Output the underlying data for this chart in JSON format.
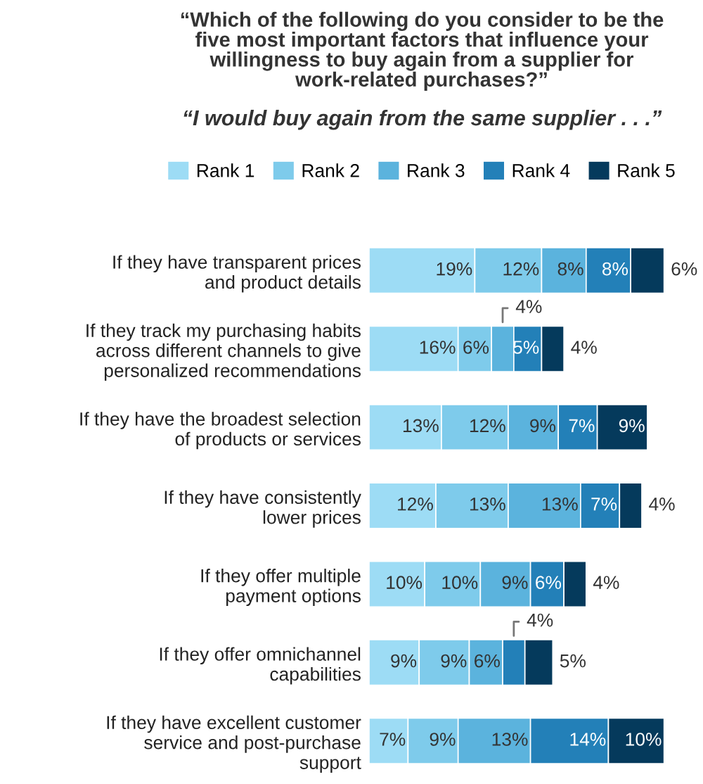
{
  "chart_data": {
    "type": "bar",
    "orientation": "horizontal",
    "stacked": true,
    "legend": "top",
    "title": "“Which of the following do you consider to be the\nfive most important factors that influence your\nwillingness to buy again from a supplier for\nwork-related purchases?”",
    "subtitle": "“I would buy again from the same supplier . . .”",
    "categories": [
      "If they have transparent prices\nand product details",
      "If they track my purchasing habits\nacross different channels to give\npersonalized recommendations",
      "If they have the broadest selection\nof products or services",
      "If they have consistently\nlower prices",
      "If they offer multiple\npayment options",
      "If they offer omnichannel\ncapabilities",
      "If they have excellent customer\nservice and post-purchase\nsupport"
    ],
    "series": [
      {
        "name": "Rank 1",
        "color": "#9ddcf5",
        "values": [
          19,
          16,
          13,
          12,
          10,
          9,
          7
        ],
        "value_labels": [
          "19%",
          "16%",
          "13%",
          "12%",
          "10%",
          "9%",
          "7%"
        ]
      },
      {
        "name": "Rank 2",
        "color": "#7ecbeb",
        "values": [
          12,
          6,
          12,
          13,
          10,
          9,
          9
        ],
        "value_labels": [
          "12%",
          "6%",
          "12%",
          "13%",
          "10%",
          "9%",
          "9%"
        ]
      },
      {
        "name": "Rank 3",
        "color": "#5bb3dd",
        "values": [
          8,
          4,
          9,
          13,
          9,
          6,
          13
        ],
        "value_labels": [
          "8%",
          "4%",
          "9%",
          "13%",
          "9%",
          "6%",
          "13%"
        ]
      },
      {
        "name": "Rank 4",
        "color": "#2380b8",
        "values": [
          8,
          5,
          7,
          7,
          6,
          4,
          14
        ],
        "value_labels": [
          "8%",
          "5%",
          "7%",
          "7%",
          "6%",
          "4%",
          "14%"
        ]
      },
      {
        "name": "Rank 5",
        "color": "#053a5c",
        "values": [
          6,
          4,
          9,
          4,
          4,
          5,
          10
        ],
        "value_labels": [
          "6%",
          "4%",
          "9%",
          "4%",
          "4%",
          "5%",
          "10%"
        ]
      }
    ]
  }
}
